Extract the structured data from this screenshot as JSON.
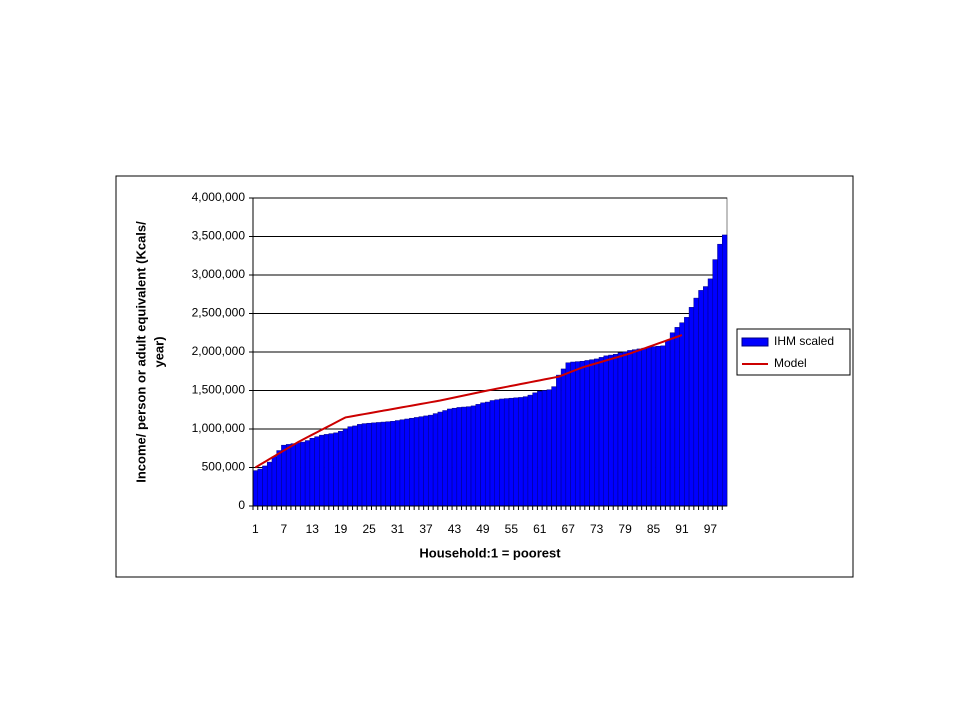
{
  "chart_data": {
    "type": "bar",
    "ylabel": [
      "Income/ person or adult equivalent (Kcals/",
      "year)"
    ],
    "xlabel": "Household:1 = poorest",
    "categories": [
      "1",
      null,
      null,
      null,
      null,
      null,
      "7",
      null,
      null,
      null,
      null,
      null,
      "13",
      null,
      null,
      null,
      null,
      null,
      "19",
      null,
      null,
      null,
      null,
      null,
      "25",
      null,
      null,
      null,
      null,
      null,
      "31",
      null,
      null,
      null,
      null,
      null,
      "37",
      null,
      null,
      null,
      null,
      null,
      "43",
      null,
      null,
      null,
      null,
      null,
      "49",
      null,
      null,
      null,
      null,
      null,
      "55",
      null,
      null,
      null,
      null,
      null,
      "61",
      null,
      null,
      null,
      null,
      null,
      "67",
      null,
      null,
      null,
      null,
      null,
      "73",
      null,
      null,
      null,
      null,
      null,
      "79",
      null,
      null,
      null,
      null,
      null,
      "85",
      null,
      null,
      null,
      null,
      null,
      "91",
      null,
      null,
      null,
      null,
      null,
      "97",
      null,
      null,
      null
    ],
    "series": [
      {
        "name": "IHM scaled",
        "type": "bar",
        "color": "#0000ff",
        "values": [
          460000,
          480000,
          520000,
          570000,
          640000,
          720000,
          790000,
          800000,
          810000,
          820000,
          830000,
          850000,
          880000,
          900000,
          920000,
          930000,
          940000,
          950000,
          970000,
          1000000,
          1030000,
          1040000,
          1060000,
          1070000,
          1075000,
          1080000,
          1085000,
          1090000,
          1095000,
          1100000,
          1110000,
          1120000,
          1130000,
          1140000,
          1150000,
          1160000,
          1170000,
          1180000,
          1200000,
          1220000,
          1240000,
          1260000,
          1270000,
          1280000,
          1285000,
          1290000,
          1300000,
          1320000,
          1340000,
          1350000,
          1370000,
          1380000,
          1390000,
          1395000,
          1400000,
          1405000,
          1410000,
          1420000,
          1440000,
          1470000,
          1490000,
          1500000,
          1510000,
          1550000,
          1700000,
          1780000,
          1860000,
          1870000,
          1875000,
          1880000,
          1890000,
          1900000,
          1910000,
          1930000,
          1950000,
          1960000,
          1970000,
          1990000,
          2000000,
          2020000,
          2030000,
          2040000,
          2050000,
          2060000,
          2070000,
          2075000,
          2080000,
          2150000,
          2250000,
          2320000,
          2380000,
          2450000,
          2580000,
          2700000,
          2800000,
          2850000,
          2950000,
          3200000,
          3400000,
          3520000
        ]
      },
      {
        "name": "Model",
        "type": "line",
        "color": "#cc0000",
        "values": [
          500000,
          537000,
          573000,
          610000,
          647000,
          683000,
          720000,
          757000,
          793000,
          830000,
          862000,
          894000,
          926000,
          958000,
          990000,
          1022000,
          1054000,
          1086000,
          1118000,
          1150000,
          1161000,
          1172000,
          1183000,
          1194000,
          1205000,
          1216000,
          1227000,
          1238000,
          1249000,
          1260000,
          1271000,
          1282000,
          1293000,
          1304000,
          1315000,
          1326000,
          1337000,
          1348000,
          1359000,
          1370000,
          1383000,
          1396000,
          1409000,
          1422000,
          1435000,
          1448000,
          1461000,
          1474000,
          1487000,
          1500000,
          1512000,
          1524000,
          1536000,
          1548000,
          1560000,
          1572000,
          1584000,
          1596000,
          1608000,
          1620000,
          1632000,
          1644000,
          1656000,
          1668000,
          1680000,
          1704000,
          1728000,
          1752000,
          1776000,
          1800000,
          1818000,
          1836000,
          1854000,
          1872000,
          1890000,
          1908000,
          1926000,
          1944000,
          1962000,
          1980000,
          2002000,
          2024000,
          2045000,
          2067000,
          2089000,
          2111000,
          2133000,
          2155000,
          2176000,
          2198000,
          2220000,
          null,
          null,
          null,
          null,
          null,
          null,
          null,
          null,
          null
        ]
      }
    ],
    "ylim": [
      0,
      4000000
    ],
    "yticks": [
      0,
      {
        "value": 500000,
        "label": "500,000"
      },
      {
        "value": 1000000,
        "label": "1,000,000"
      },
      {
        "value": 1500000,
        "label": "1,500,000"
      },
      {
        "value": 2000000,
        "label": "2,000,000"
      },
      {
        "value": 2500000,
        "label": "2,500,000"
      },
      {
        "value": 3000000,
        "label": "3,000,000"
      },
      {
        "value": 3500000,
        "label": "3,500,000"
      },
      {
        "value": 4000000,
        "label": "4,000,000"
      }
    ],
    "grid": true,
    "legend": "right"
  }
}
